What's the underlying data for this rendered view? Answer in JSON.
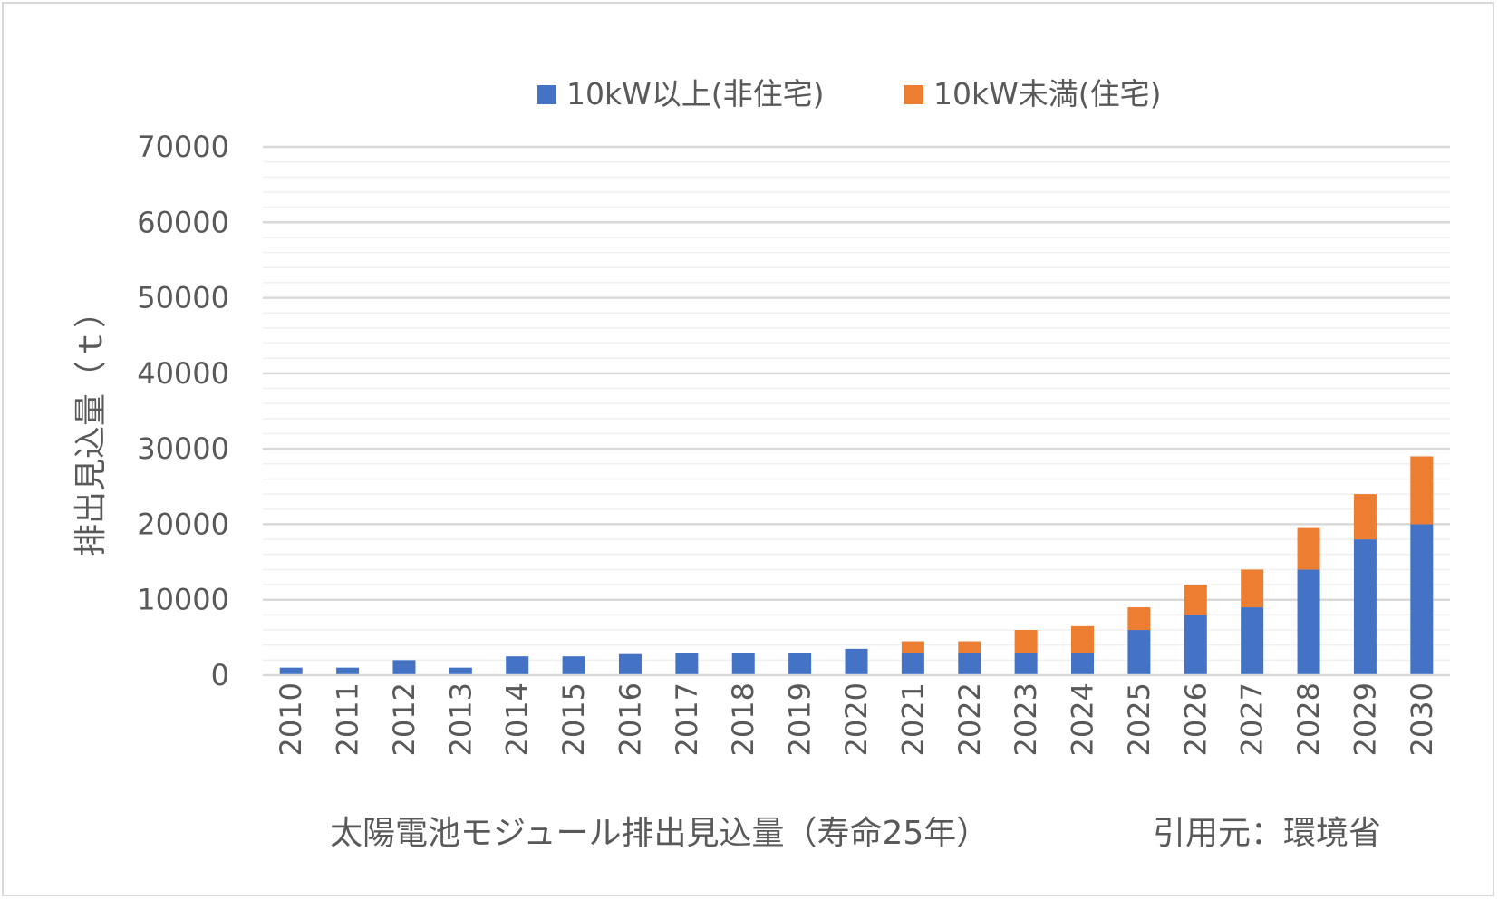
{
  "chart_data": {
    "type": "bar",
    "stacked": true,
    "categories": [
      "2010",
      "2011",
      "2012",
      "2013",
      "2014",
      "2015",
      "2016",
      "2017",
      "2018",
      "2019",
      "2020",
      "2021",
      "2022",
      "2023",
      "2024",
      "2025",
      "2026",
      "2027",
      "2028",
      "2029",
      "2030"
    ],
    "series": [
      {
        "name": "10kW以上(非住宅)",
        "color": "#4472C4",
        "values": [
          1000,
          1000,
          2000,
          1000,
          2500,
          2500,
          2800,
          3000,
          3000,
          3000,
          3500,
          3000,
          3000,
          3000,
          3000,
          6000,
          8000,
          9000,
          14000,
          18000,
          20000
        ]
      },
      {
        "name": "10kW未満(住宅)",
        "color": "#ED7D31",
        "values": [
          0,
          0,
          0,
          0,
          0,
          0,
          0,
          0,
          0,
          0,
          0,
          1500,
          1500,
          3000,
          3500,
          3000,
          4000,
          5000,
          5500,
          6000,
          9000
        ]
      }
    ],
    "ylim": [
      0,
      70000
    ],
    "yticks": [
      "0",
      "10000",
      "20000",
      "30000",
      "40000",
      "50000",
      "60000",
      "70000"
    ],
    "ylabel": "排出見込量（ｔ）",
    "xlabel": "太陽電池モジュール排出見込量（寿命25年）",
    "source_note": "引用元：環境省",
    "legend_position": "top",
    "grid": true
  }
}
